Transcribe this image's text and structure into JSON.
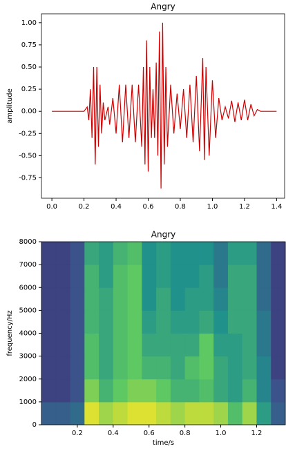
{
  "chart_data": [
    {
      "type": "line",
      "title": "Angry",
      "ylabel": "amplitude",
      "color": "#cc0000",
      "x": [
        0.0,
        0.2,
        0.22,
        0.23,
        0.24,
        0.25,
        0.26,
        0.27,
        0.28,
        0.29,
        0.3,
        0.31,
        0.32,
        0.33,
        0.35,
        0.36,
        0.38,
        0.4,
        0.42,
        0.44,
        0.46,
        0.48,
        0.5,
        0.52,
        0.54,
        0.56,
        0.57,
        0.58,
        0.59,
        0.6,
        0.61,
        0.62,
        0.63,
        0.64,
        0.65,
        0.66,
        0.67,
        0.68,
        0.69,
        0.7,
        0.71,
        0.72,
        0.74,
        0.76,
        0.78,
        0.8,
        0.82,
        0.84,
        0.86,
        0.88,
        0.9,
        0.92,
        0.94,
        0.95,
        0.96,
        0.98,
        1.0,
        1.02,
        1.04,
        1.06,
        1.08,
        1.1,
        1.12,
        1.14,
        1.16,
        1.18,
        1.2,
        1.22,
        1.24,
        1.26,
        1.28,
        1.3,
        1.4
      ],
      "values": [
        0,
        0,
        0.05,
        -0.1,
        0.25,
        -0.3,
        0.5,
        -0.6,
        0.5,
        -0.4,
        0.3,
        -0.25,
        0.1,
        -0.1,
        0.05,
        -0.15,
        0.15,
        -0.25,
        0.3,
        -0.35,
        0.3,
        -0.3,
        0.3,
        -0.35,
        0.3,
        -0.4,
        0.5,
        -0.6,
        0.8,
        -0.68,
        0.5,
        -0.3,
        0.25,
        -0.3,
        0.55,
        -0.5,
        0.9,
        -0.87,
        1.0,
        -0.6,
        0.5,
        -0.4,
        0.3,
        -0.25,
        0.2,
        -0.2,
        0.25,
        -0.3,
        0.3,
        -0.35,
        0.4,
        -0.45,
        0.6,
        -0.55,
        0.5,
        -0.5,
        0.35,
        -0.3,
        0.15,
        -0.1,
        0.05,
        -0.08,
        0.12,
        -0.12,
        0.1,
        -0.1,
        0.13,
        -0.1,
        0.08,
        -0.05,
        0.02,
        0,
        0
      ],
      "xlim": [
        -0.065,
        1.45
      ],
      "ylim": [
        -0.98,
        1.1
      ],
      "xticks": [
        {
          "value": 0,
          "label": "0.0"
        },
        0.2,
        0.4,
        0.6,
        0.8,
        {
          "value": 1,
          "label": "1.0"
        },
        1.2,
        1.4
      ],
      "yticks": [
        {
          "value": 1,
          "label": "1.00"
        },
        0.75,
        {
          "value": 0.5,
          "label": "0.50"
        },
        0.25,
        {
          "value": 0,
          "label": "0.00"
        },
        -0.25,
        {
          "value": -0.5,
          "label": "-0.50"
        },
        -0.75
      ]
    },
    {
      "type": "heatmap",
      "title": "Angry",
      "xlabel": "time/s",
      "ylabel": "frequency/Hz",
      "colormap": "viridis",
      "x": [
        0.04,
        0.12,
        0.2,
        0.28,
        0.36,
        0.44,
        0.52,
        0.6,
        0.68,
        0.76,
        0.84,
        0.92,
        1.0,
        1.08,
        1.16,
        1.24,
        1.32
      ],
      "y": [
        500,
        1500,
        2500,
        3500,
        4500,
        5500,
        6500,
        7500
      ],
      "values": [
        [
          0.3,
          0.3,
          0.35,
          0.95,
          0.85,
          0.9,
          0.95,
          0.95,
          0.9,
          0.85,
          0.9,
          0.9,
          0.85,
          0.7,
          0.85,
          0.55,
          0.3
        ],
        [
          0.2,
          0.2,
          0.25,
          0.8,
          0.65,
          0.75,
          0.8,
          0.8,
          0.75,
          0.65,
          0.65,
          0.7,
          0.6,
          0.55,
          0.65,
          0.45,
          0.25
        ],
        [
          0.2,
          0.2,
          0.25,
          0.7,
          0.6,
          0.7,
          0.75,
          0.65,
          0.65,
          0.6,
          0.7,
          0.75,
          0.6,
          0.55,
          0.6,
          0.45,
          0.2
        ],
        [
          0.2,
          0.2,
          0.25,
          0.7,
          0.6,
          0.7,
          0.75,
          0.6,
          0.6,
          0.6,
          0.6,
          0.75,
          0.55,
          0.55,
          0.6,
          0.4,
          0.2
        ],
        [
          0.2,
          0.2,
          0.25,
          0.65,
          0.6,
          0.7,
          0.75,
          0.55,
          0.6,
          0.55,
          0.55,
          0.6,
          0.5,
          0.6,
          0.6,
          0.4,
          0.2
        ],
        [
          0.2,
          0.2,
          0.25,
          0.65,
          0.6,
          0.7,
          0.75,
          0.5,
          0.6,
          0.5,
          0.55,
          0.55,
          0.45,
          0.6,
          0.6,
          0.35,
          0.2
        ],
        [
          0.2,
          0.2,
          0.25,
          0.65,
          0.55,
          0.7,
          0.75,
          0.5,
          0.55,
          0.5,
          0.5,
          0.55,
          0.4,
          0.6,
          0.6,
          0.35,
          0.2
        ],
        [
          0.2,
          0.2,
          0.25,
          0.6,
          0.55,
          0.65,
          0.7,
          0.5,
          0.55,
          0.5,
          0.5,
          0.5,
          0.4,
          0.55,
          0.55,
          0.35,
          0.2
        ]
      ],
      "xlim": [
        0,
        1.36
      ],
      "ylim": [
        0,
        8000
      ],
      "xticks": [
        0.2,
        0.4,
        0.6,
        0.8,
        {
          "value": 1,
          "label": "1.0"
        },
        1.2
      ],
      "yticks": [
        0,
        1000,
        2000,
        3000,
        4000,
        5000,
        6000,
        7000,
        8000
      ]
    }
  ]
}
